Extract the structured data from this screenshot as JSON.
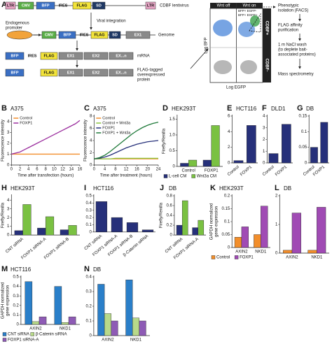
{
  "panel_a": {
    "label": "A",
    "lentivirus": [
      "LTR",
      "CMV",
      "BFP",
      "IRES",
      "FLAG",
      "SD",
      "LTR"
    ],
    "lentivirus_label": "CDBF lentivirus",
    "integration": "Viral integration",
    "promoter": [
      "Endogenous",
      "promoter"
    ],
    "genome": [
      "CMV",
      "BFP",
      "IRES",
      "FLAG",
      "SD",
      "EX1"
    ],
    "genome_label": "Genome",
    "mrna": [
      "BFP",
      "IRES",
      "FLAG",
      "EX1",
      "EX2",
      "EX...n"
    ],
    "mrna_label": "mRNA",
    "protein": [
      "BFP",
      "FLAG",
      "EX1",
      "EX2",
      "EX...n"
    ],
    "protein_label": [
      "FLAG-tagged",
      "overexpressed",
      "protein"
    ],
    "facs": {
      "wnt_off": "Wnt off",
      "wnt_on": "Wnt on",
      "gate1": "BFP+ EGFP-",
      "gate2": "BFP+ EGFP+",
      "cdbf_pos": "CDBF+",
      "cdbf_neg": "CDBF-",
      "ylabel": "Log BFP",
      "xlabel": "Log EGFP"
    },
    "steps": [
      [
        "Phenotypic",
        "isolation (FACS)"
      ],
      [
        "FLAG affinity",
        "purification"
      ],
      [
        "1 m NaCl wash",
        "(to deplete bait-",
        "associated proteins)"
      ],
      [
        "Mass spectrometry"
      ]
    ]
  },
  "chart_data": [
    {
      "panel": "B",
      "type": "line",
      "title": "A375",
      "xlabel": "Time after transfection (hours)",
      "ylabel": "Fluorescence intensity",
      "x": [
        0,
        1,
        2,
        3,
        4,
        5,
        6,
        7,
        8,
        9,
        10,
        11,
        12,
        13,
        14,
        15,
        16
      ],
      "xlim": [
        0,
        16
      ],
      "xticks": [
        0,
        2,
        4,
        6,
        8,
        10,
        12,
        14,
        16
      ],
      "ylim": [
        0,
        4.5
      ],
      "yticks": [
        0,
        1,
        2,
        3,
        4
      ],
      "legend": "upper left",
      "series": [
        {
          "name": "Control",
          "color": "#f28e2b",
          "values": [
            1,
            1,
            1,
            1,
            1,
            1,
            1,
            1,
            1,
            1,
            1,
            1,
            1,
            1,
            1,
            1,
            1
          ]
        },
        {
          "name": "FOXP1",
          "color": "#9b2f9e",
          "values": [
            1,
            1.1,
            1.2,
            1.4,
            1.6,
            1.8,
            2,
            2.2,
            2.4,
            2.6,
            2.8,
            3,
            3.2,
            3.4,
            3.6,
            3.8,
            4.1
          ]
        }
      ]
    },
    {
      "panel": "C",
      "type": "line",
      "title": "A375",
      "xlabel": "Time after treatment (hours)",
      "ylabel": "Fluorescence intensity",
      "x": [
        0,
        2,
        4,
        6,
        8,
        10,
        12,
        14,
        16,
        18,
        20,
        22,
        24
      ],
      "xlim": [
        0,
        24
      ],
      "xticks": [
        0,
        4,
        8,
        12,
        16,
        20,
        24
      ],
      "ylim": [
        0,
        8
      ],
      "yticks": [
        0,
        2,
        4,
        6,
        8
      ],
      "legend": "upper left",
      "series": [
        {
          "name": "Control",
          "color": "#f28e2b",
          "values": [
            1,
            1,
            1,
            1,
            1,
            1,
            1,
            1,
            1,
            1,
            1,
            1,
            1
          ]
        },
        {
          "name": "Control + Wnt3a",
          "color": "#8cc63f",
          "values": [
            1,
            1,
            1,
            1,
            1.1,
            1.1,
            1.1,
            1.1,
            1.1,
            1.1,
            1.1,
            1.1,
            1.1
          ]
        },
        {
          "name": "FOXP1",
          "color": "#26307a",
          "values": [
            1,
            1.1,
            1.3,
            1.6,
            2,
            2.4,
            2.8,
            3.1,
            3.4,
            3.6,
            3.8,
            3.9,
            4
          ]
        },
        {
          "name": "FOXP1 + Wnt3a",
          "color": "#1f7a3a",
          "values": [
            1,
            1.2,
            1.6,
            2.2,
            2.9,
            3.6,
            4.3,
            5,
            5.6,
            6.1,
            6.5,
            6.8,
            7
          ]
        }
      ]
    },
    {
      "panel": "D",
      "type": "bar",
      "title": "HEK293T",
      "ylabel": "Firefly/Renilla",
      "categories": [
        "Control",
        "FOXP1"
      ],
      "ylim": [
        0,
        1.6
      ],
      "yticks": [
        0,
        0.5,
        {
          "value": 1,
          "label": "1.0"
        },
        1.5
      ],
      "legend": "below",
      "series": [
        {
          "name": "L-cell CM",
          "color": "#26307a",
          "values": [
            0.1,
            0.2
          ]
        },
        {
          "name": "Wnt3a CM",
          "color": "#7ac142",
          "values": [
            0.2,
            1.3
          ]
        }
      ]
    },
    {
      "panel": "E",
      "type": "bar",
      "title": "HCT116",
      "categories": [
        "Control",
        "FOXP1"
      ],
      "ylim": [
        0,
        6
      ],
      "yticks": [
        0,
        2,
        4,
        6
      ],
      "series": [
        {
          "color": "#26307a",
          "values": [
            0.3,
            4.8
          ]
        }
      ]
    },
    {
      "panel": "F",
      "type": "bar",
      "title": "DLD1",
      "categories": [
        "Control",
        "FOXP1"
      ],
      "ylim": [
        0,
        4
      ],
      "yticks": [
        0,
        1,
        2,
        3,
        4
      ],
      "series": [
        {
          "color": "#26307a",
          "values": [
            0.8,
            3.3
          ]
        }
      ]
    },
    {
      "panel": "G",
      "type": "bar",
      "title": "DB",
      "categories": [
        "Control",
        "FOXP1"
      ],
      "ylim": [
        0,
        0.15
      ],
      "yticks": [
        0,
        0.05,
        0.1,
        0.15
      ],
      "series": [
        {
          "color": "#26307a",
          "values": [
            0.05,
            0.13
          ]
        }
      ]
    },
    {
      "panel": "H",
      "type": "bar",
      "title": "HEK293T",
      "ylabel": "Firefly/Renilla",
      "categories": [
        "CNT siRNA",
        "FOXP1 siRNA-A",
        "FOXP1 siRNA-B"
      ],
      "ylim": [
        0,
        4.5
      ],
      "yticks": [
        0,
        1,
        2,
        3,
        4
      ],
      "series": [
        {
          "color": "#26307a",
          "values": [
            0.5,
            0.8,
            0.6
          ]
        },
        {
          "color": "#7ac142",
          "values": [
            3.5,
            2.1,
            1.1
          ]
        }
      ]
    },
    {
      "panel": "I",
      "type": "bar",
      "title": "HCT116",
      "categories": [
        "CNT siRNA",
        "FOXP1 siRNA-A",
        "FOXP1 siRNA-B",
        "β-Catenin siRNA"
      ],
      "ylim": [
        0,
        0.5
      ],
      "yticks": [
        0,
        0.1,
        0.2,
        0.3,
        0.4,
        0.5
      ],
      "series": [
        {
          "color": "#26307a",
          "values": [
            0.42,
            0.2,
            0.13,
            0.03
          ]
        }
      ]
    },
    {
      "panel": "J",
      "type": "bar",
      "title": "DB",
      "ylabel": "Firefly/Renilla",
      "categories": [
        "CNT siRNA",
        "FOXP1 siRNA-A"
      ],
      "ylim": [
        0,
        0.8
      ],
      "yticks": [
        0,
        0.2,
        0.4,
        0.6,
        0.8
      ],
      "series": [
        {
          "color": "#26307a",
          "values": [
            0.2,
            0.15
          ]
        },
        {
          "color": "#7ac142",
          "values": [
            0.7,
            0.3
          ]
        }
      ]
    },
    {
      "panel": "K",
      "type": "bar",
      "title": "HEK293T",
      "ylabel": [
        "GAPDH normalized",
        "gene expression"
      ],
      "categories": [
        "AXIN2",
        "NKD1"
      ],
      "ylim": [
        0,
        0.2
      ],
      "yticks": [
        0,
        0.05,
        0.1,
        0.15,
        0.2
      ],
      "legend": "below",
      "series": [
        {
          "name": "Control",
          "color": "#f28e2b",
          "values": [
            0.04,
            0.05
          ]
        },
        {
          "name": "FOXP1",
          "color": "#a04bb4",
          "values": [
            0.08,
            0.16
          ]
        }
      ]
    },
    {
      "panel": "L",
      "type": "bar",
      "title": "DB",
      "categories": [
        "AXIN2",
        "NKD1"
      ],
      "ylim": [
        0,
        2
      ],
      "yticks": [
        0,
        1,
        2
      ],
      "series": [
        {
          "color": "#f28e2b",
          "values": [
            0.1,
            0.1
          ]
        },
        {
          "color": "#a04bb4",
          "values": [
            1.4,
            1.6
          ]
        }
      ]
    },
    {
      "panel": "M",
      "type": "bar",
      "title": "HCT116",
      "ylabel": [
        "GAPDH normalized",
        "gene expression"
      ],
      "categories": [
        "AXIN2",
        "NKD1"
      ],
      "ylim": [
        0,
        0.5
      ],
      "yticks": [
        0,
        0.1,
        0.2,
        0.3,
        0.4,
        0.5
      ],
      "legend": "below",
      "series": [
        {
          "name": "CNT siRNA",
          "color": "#2a7fc9",
          "values": [
            0.45,
            0.4
          ]
        },
        {
          "name": "β-Catenin siRNA",
          "color": "#b8d98a",
          "values": [
            0.03,
            0.02
          ]
        },
        {
          "name": "FOXP1 siRNA-A",
          "color": "#8e5bb5",
          "values": [
            0.08,
            0.08
          ]
        }
      ]
    },
    {
      "panel": "N",
      "type": "bar",
      "title": "DB",
      "categories": [
        "AXIN2",
        "NKD1"
      ],
      "ylim": [
        0,
        0.4
      ],
      "yticks": [
        0,
        0.1,
        0.2,
        0.3,
        0.4
      ],
      "series": [
        {
          "color": "#2a7fc9",
          "values": [
            0.35,
            0.38
          ]
        },
        {
          "color": "#b8d98a",
          "values": [
            0.15,
            0.12
          ]
        },
        {
          "color": "#8e5bb5",
          "values": [
            0.1,
            0.1
          ]
        }
      ]
    }
  ]
}
